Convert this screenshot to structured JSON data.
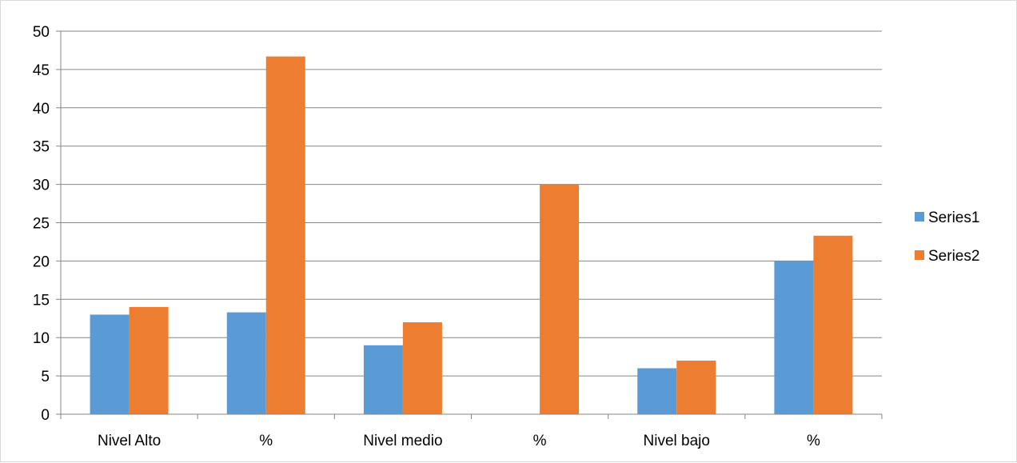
{
  "chart_data": {
    "type": "bar",
    "title": "",
    "xlabel": "",
    "ylabel": "",
    "categories": [
      "Nivel Alto",
      "%",
      "Nivel medio",
      "%",
      "Nivel bajo",
      "%"
    ],
    "series": [
      {
        "name": "Series1",
        "color": "#5b9bd5",
        "values": [
          13,
          13.3,
          9,
          0,
          6,
          20
        ]
      },
      {
        "name": "Series2",
        "color": "#ed7d31",
        "values": [
          14,
          46.7,
          12,
          30,
          7,
          23.3
        ]
      }
    ],
    "ylim": [
      0,
      50
    ],
    "yticks": [
      0,
      5,
      10,
      15,
      20,
      25,
      30,
      35,
      40,
      45,
      50
    ],
    "grid": true,
    "legend_position": "right"
  }
}
